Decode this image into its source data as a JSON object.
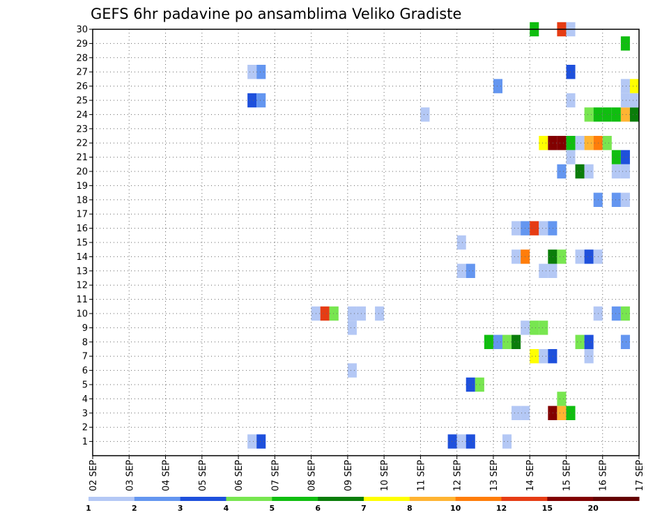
{
  "chart_data": {
    "type": "heatmap",
    "title": "GEFS 6hr padavine po ansamblima Veliko Gradiste",
    "xlabel": "",
    "ylabel": "",
    "x_ticks": [
      "02 SEP",
      "03 SEP",
      "04 SEP",
      "05 SEP",
      "06 SEP",
      "07 SEP",
      "08 SEP",
      "09 SEP",
      "10 SEP",
      "11 SEP",
      "12 SEP",
      "13 SEP",
      "14 SEP",
      "15 SEP",
      "16 SEP",
      "17 SEP"
    ],
    "x_range_days": [
      2,
      17
    ],
    "y_range_members": [
      0,
      30
    ],
    "y_ticks": [
      1,
      2,
      3,
      4,
      5,
      6,
      7,
      8,
      9,
      10,
      11,
      12,
      13,
      14,
      15,
      16,
      17,
      18,
      19,
      20,
      21,
      22,
      23,
      24,
      25,
      26,
      27,
      28,
      29,
      30
    ],
    "grid": true,
    "legend_placement": "bottom",
    "legend": {
      "colors": [
        "#b4c8f5",
        "#6496f0",
        "#1e50dc",
        "#78e650",
        "#10be10",
        "#0a7d0a",
        "#ffff00",
        "#ffb432",
        "#ff7d0a",
        "#e63c14",
        "#820000",
        "#640000"
      ],
      "labels": [
        "1",
        "2",
        "3",
        "4",
        "5",
        "6",
        "7",
        "8",
        "10",
        "12",
        "15",
        "20"
      ]
    },
    "cells_note_units": "x = day of September at start of 6-hour step, y = ensemble member, c = colour class index",
    "cells": [
      {
        "x": 6.25,
        "y": 27,
        "c": 0
      },
      {
        "x": 6.5,
        "y": 27,
        "c": 1
      },
      {
        "x": 6.25,
        "y": 25,
        "c": 2
      },
      {
        "x": 6.5,
        "y": 25,
        "c": 1
      },
      {
        "x": 6.25,
        "y": 1,
        "c": 0
      },
      {
        "x": 6.5,
        "y": 1,
        "c": 2
      },
      {
        "x": 8.0,
        "y": 10,
        "c": 0
      },
      {
        "x": 8.25,
        "y": 10,
        "c": 9
      },
      {
        "x": 8.5,
        "y": 10,
        "c": 3
      },
      {
        "x": 9.0,
        "y": 10,
        "c": 0
      },
      {
        "x": 9.25,
        "y": 10,
        "c": 0
      },
      {
        "x": 9.75,
        "y": 10,
        "c": 0
      },
      {
        "x": 9.0,
        "y": 9,
        "c": 0
      },
      {
        "x": 9.0,
        "y": 6,
        "c": 0
      },
      {
        "x": 11.0,
        "y": 24,
        "c": 0
      },
      {
        "x": 11.75,
        "y": 1,
        "c": 2
      },
      {
        "x": 12.0,
        "y": 1,
        "c": 0
      },
      {
        "x": 12.25,
        "y": 1,
        "c": 2
      },
      {
        "x": 12.0,
        "y": 15,
        "c": 0
      },
      {
        "x": 12.0,
        "y": 13,
        "c": 0
      },
      {
        "x": 12.25,
        "y": 13,
        "c": 1
      },
      {
        "x": 12.25,
        "y": 5,
        "c": 2
      },
      {
        "x": 12.5,
        "y": 5,
        "c": 3
      },
      {
        "x": 12.75,
        "y": 8,
        "c": 4
      },
      {
        "x": 13.0,
        "y": 8,
        "c": 1
      },
      {
        "x": 13.25,
        "y": 8,
        "c": 3
      },
      {
        "x": 13.5,
        "y": 8,
        "c": 5
      },
      {
        "x": 13.0,
        "y": 26,
        "c": 1
      },
      {
        "x": 13.5,
        "y": 16,
        "c": 0
      },
      {
        "x": 13.75,
        "y": 16,
        "c": 1
      },
      {
        "x": 14.0,
        "y": 16,
        "c": 9
      },
      {
        "x": 14.25,
        "y": 16,
        "c": 0
      },
      {
        "x": 14.5,
        "y": 16,
        "c": 1
      },
      {
        "x": 13.5,
        "y": 14,
        "c": 0
      },
      {
        "x": 13.75,
        "y": 14,
        "c": 8
      },
      {
        "x": 13.5,
        "y": 3,
        "c": 0
      },
      {
        "x": 13.75,
        "y": 3,
        "c": 0
      },
      {
        "x": 13.25,
        "y": 1,
        "c": 0
      },
      {
        "x": 14.0,
        "y": 30,
        "c": 4
      },
      {
        "x": 14.75,
        "y": 30,
        "c": 9
      },
      {
        "x": 15.0,
        "y": 30,
        "c": 0
      },
      {
        "x": 13.75,
        "y": 9,
        "c": 0
      },
      {
        "x": 14.0,
        "y": 9,
        "c": 3
      },
      {
        "x": 14.25,
        "y": 9,
        "c": 3
      },
      {
        "x": 14.0,
        "y": 7,
        "c": 6
      },
      {
        "x": 14.25,
        "y": 7,
        "c": 0
      },
      {
        "x": 14.5,
        "y": 7,
        "c": 2
      },
      {
        "x": 14.25,
        "y": 22,
        "c": 6
      },
      {
        "x": 14.5,
        "y": 22,
        "c": 10
      },
      {
        "x": 14.75,
        "y": 22,
        "c": 10
      },
      {
        "x": 15.0,
        "y": 22,
        "c": 4
      },
      {
        "x": 15.25,
        "y": 22,
        "c": 0
      },
      {
        "x": 15.5,
        "y": 22,
        "c": 7
      },
      {
        "x": 15.75,
        "y": 22,
        "c": 8
      },
      {
        "x": 16.0,
        "y": 22,
        "c": 3
      },
      {
        "x": 14.25,
        "y": 13,
        "c": 0
      },
      {
        "x": 14.5,
        "y": 13,
        "c": 0
      },
      {
        "x": 14.5,
        "y": 14,
        "c": 5
      },
      {
        "x": 14.75,
        "y": 14,
        "c": 3
      },
      {
        "x": 14.5,
        "y": 3,
        "c": 10
      },
      {
        "x": 14.75,
        "y": 3,
        "c": 7
      },
      {
        "x": 15.0,
        "y": 3,
        "c": 4
      },
      {
        "x": 14.75,
        "y": 4,
        "c": 3
      },
      {
        "x": 14.75,
        "y": 20,
        "c": 1
      },
      {
        "x": 15.0,
        "y": 21,
        "c": 0
      },
      {
        "x": 15.0,
        "y": 27,
        "c": 2
      },
      {
        "x": 15.0,
        "y": 25,
        "c": 0
      },
      {
        "x": 15.25,
        "y": 20,
        "c": 5
      },
      {
        "x": 15.5,
        "y": 20,
        "c": 0
      },
      {
        "x": 15.25,
        "y": 14,
        "c": 0
      },
      {
        "x": 15.5,
        "y": 14,
        "c": 2
      },
      {
        "x": 15.75,
        "y": 14,
        "c": 0
      },
      {
        "x": 15.25,
        "y": 8,
        "c": 3
      },
      {
        "x": 15.5,
        "y": 8,
        "c": 2
      },
      {
        "x": 15.5,
        "y": 7,
        "c": 0
      },
      {
        "x": 15.5,
        "y": 24,
        "c": 3
      },
      {
        "x": 15.75,
        "y": 24,
        "c": 4
      },
      {
        "x": 16.0,
        "y": 24,
        "c": 4
      },
      {
        "x": 16.25,
        "y": 24,
        "c": 4
      },
      {
        "x": 16.5,
        "y": 24,
        "c": 7
      },
      {
        "x": 16.75,
        "y": 24,
        "c": 5
      },
      {
        "x": 15.75,
        "y": 18,
        "c": 1
      },
      {
        "x": 15.75,
        "y": 10,
        "c": 0
      },
      {
        "x": 16.25,
        "y": 21,
        "c": 4
      },
      {
        "x": 16.5,
        "y": 21,
        "c": 2
      },
      {
        "x": 16.25,
        "y": 20,
        "c": 0
      },
      {
        "x": 16.5,
        "y": 20,
        "c": 0
      },
      {
        "x": 16.25,
        "y": 18,
        "c": 1
      },
      {
        "x": 16.5,
        "y": 18,
        "c": 0
      },
      {
        "x": 16.25,
        "y": 10,
        "c": 1
      },
      {
        "x": 16.5,
        "y": 10,
        "c": 3
      },
      {
        "x": 16.5,
        "y": 29,
        "c": 4
      },
      {
        "x": 16.5,
        "y": 26,
        "c": 0
      },
      {
        "x": 16.75,
        "y": 26,
        "c": 6
      },
      {
        "x": 16.5,
        "y": 25,
        "c": 0
      },
      {
        "x": 16.75,
        "y": 25,
        "c": 0
      },
      {
        "x": 16.5,
        "y": 8,
        "c": 1
      }
    ]
  }
}
